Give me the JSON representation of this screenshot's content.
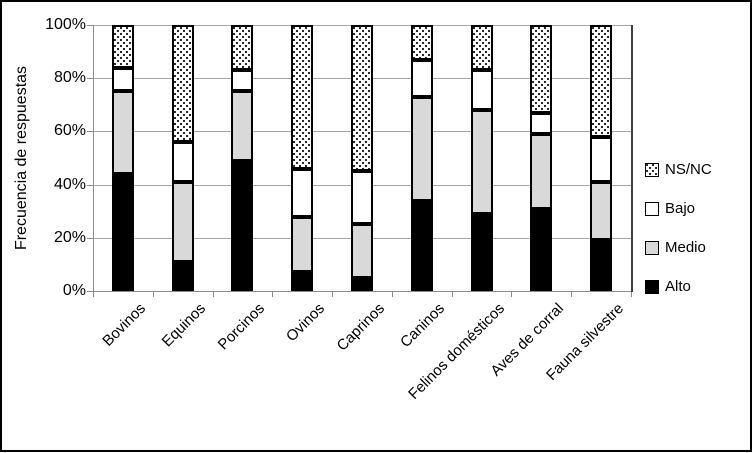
{
  "figure": {
    "background": "#ffffff",
    "border_color": "#000000",
    "gridline_color": "#a6a6a6",
    "axis_color": "#8c8c8c"
  },
  "chart_data": {
    "type": "bar",
    "subtype": "stacked-100-percent",
    "title": "",
    "ylabel": "Frecuencia de respuestas",
    "xlabel": "",
    "ylim": [
      0,
      100
    ],
    "y_ticks": [
      "0%",
      "20%",
      "40%",
      "60%",
      "80%",
      "100%"
    ],
    "y_tick_values": [
      0,
      20,
      40,
      60,
      80,
      100
    ],
    "grid": true,
    "legend_position": "right",
    "legend_order": [
      "NS/NC",
      "Bajo",
      "Medio",
      "Alto"
    ],
    "stack_order_top_to_bottom": [
      "NS/NC",
      "Bajo",
      "Medio",
      "Alto"
    ],
    "categories": [
      "Bovinos",
      "Equinos",
      "Porcinos",
      "Ovinos",
      "Caprinos",
      "Caninos",
      "Felinos domésticos",
      "Aves de corral",
      "Fauna silvestre"
    ],
    "series": [
      {
        "name": "Alto",
        "color": "#000000",
        "pattern": "solid",
        "values": [
          44,
          11,
          49,
          7,
          5,
          34,
          29,
          31,
          19
        ]
      },
      {
        "name": "Medio",
        "color": "#d9d9d9",
        "pattern": "solid",
        "values": [
          31,
          30,
          26,
          21,
          20,
          39,
          39,
          28,
          22
        ]
      },
      {
        "name": "Bajo",
        "color": "#ffffff",
        "pattern": "solid",
        "values": [
          9,
          15,
          8,
          18,
          20,
          14,
          15,
          8,
          17
        ]
      },
      {
        "name": "NS/NC",
        "color": "#ffffff",
        "pattern": "dots",
        "values": [
          16,
          44,
          17,
          54,
          55,
          13,
          17,
          33,
          42
        ]
      }
    ]
  }
}
